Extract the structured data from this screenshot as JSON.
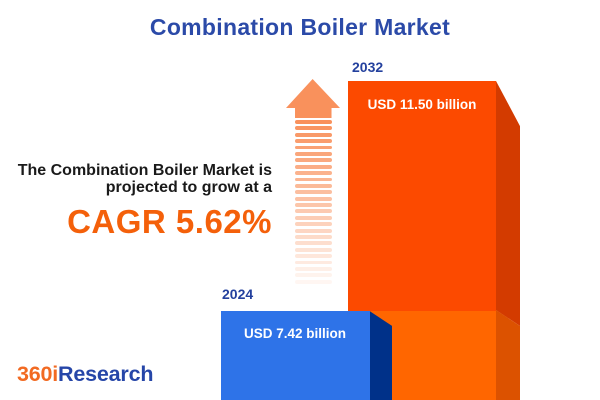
{
  "title": "Combination Boiler Market",
  "annotation": {
    "line1": "The Combination Boiler Market is",
    "line2": "projected to grow at a",
    "cagr": "CAGR 5.62%"
  },
  "bars": [
    {
      "year": "2024",
      "value_label": "USD 7.42 billion"
    },
    {
      "year": "2032",
      "value_label": "USD 11.50 billion"
    }
  ],
  "logo": {
    "part1": "360i",
    "part2": "Research"
  },
  "icons": {
    "growth_arrow": "dashed-up-arrow-icon"
  },
  "colors": {
    "title_blue": "#2B4AA8",
    "year_navy": "#24419E",
    "text_dark": "#1A1A1A",
    "cagr_orange": "#F4600A",
    "bar2032_front": "#FC4A00",
    "bar2032_front_lower": "#FF6600",
    "bar2032_side": "#D33B00",
    "bar2032_side_lower": "#DC5200",
    "bar2024_front": "#2E73E8",
    "bar2024_side": "#003189",
    "arrow_orange": "#F9915C",
    "logo_orange": "#F26A22",
    "logo_blue": "#2646A8"
  },
  "chart_data": {
    "type": "bar",
    "title": "Combination Boiler Market",
    "categories": [
      "2024",
      "2032"
    ],
    "values": [
      7.42,
      11.5
    ],
    "unit": "USD billion",
    "value_labels": [
      "USD 7.42 billion",
      "USD 11.50 billion"
    ],
    "cagr_percent": 5.62,
    "annotation_text": "The Combination Boiler Market is projected to grow at a CAGR 5.62%",
    "legend": "none",
    "grid": false,
    "style": "3d-infographic-columns"
  }
}
